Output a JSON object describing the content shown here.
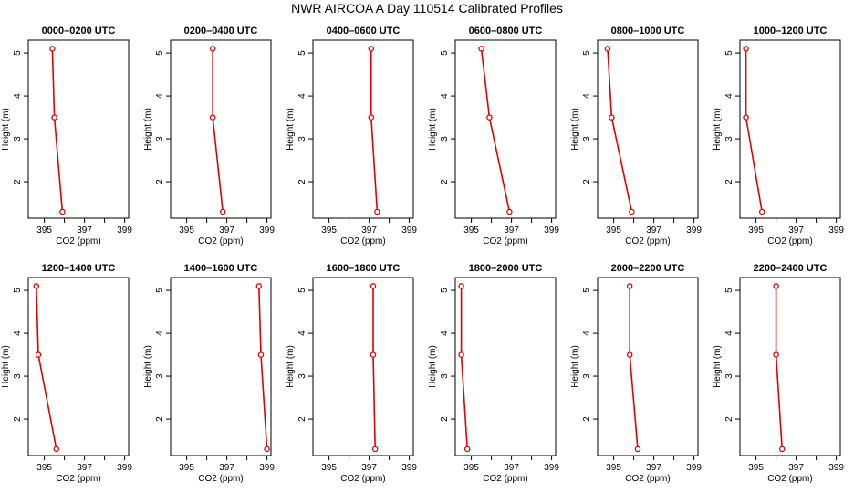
{
  "title": "NWR AIRCOA A  Day 110514  Calibrated Profiles",
  "chart_data": [
    {
      "type": "line",
      "title": "0000–0200 UTC",
      "xlabel": "CO2 (ppm)",
      "ylabel": "Height (m)",
      "xlim": [
        394.2,
        399.2
      ],
      "ylim": [
        1.15,
        5.3
      ],
      "xticks": [
        "395",
        "397",
        "399"
      ],
      "yticks": [
        "2",
        "3",
        "4",
        "5"
      ],
      "series": [
        {
          "x": [
            395.4,
            395.5,
            395.9
          ],
          "y": [
            5.1,
            3.5,
            1.3
          ]
        }
      ]
    },
    {
      "type": "line",
      "title": "0200–0400 UTC",
      "xlabel": "CO2 (ppm)",
      "ylabel": "Height (m)",
      "xlim": [
        394.2,
        399.2
      ],
      "ylim": [
        1.15,
        5.3
      ],
      "xticks": [
        "395",
        "397",
        "399"
      ],
      "yticks": [
        "2",
        "3",
        "4",
        "5"
      ],
      "series": [
        {
          "x": [
            396.3,
            396.3,
            396.8
          ],
          "y": [
            5.1,
            3.5,
            1.3
          ]
        }
      ]
    },
    {
      "type": "line",
      "title": "0400–0600 UTC",
      "xlabel": "CO2 (ppm)",
      "ylabel": "Height (m)",
      "xlim": [
        394.2,
        399.2
      ],
      "ylim": [
        1.15,
        5.3
      ],
      "xticks": [
        "395",
        "397",
        "399"
      ],
      "yticks": [
        "2",
        "3",
        "4",
        "5"
      ],
      "series": [
        {
          "x": [
            397.1,
            397.1,
            397.4
          ],
          "y": [
            5.1,
            3.5,
            1.3
          ]
        }
      ]
    },
    {
      "type": "line",
      "title": "0600–0800 UTC",
      "xlabel": "CO2 (ppm)",
      "ylabel": "Height (m)",
      "xlim": [
        394.2,
        399.2
      ],
      "ylim": [
        1.15,
        5.3
      ],
      "xticks": [
        "395",
        "397",
        "399"
      ],
      "yticks": [
        "2",
        "3",
        "4",
        "5"
      ],
      "series": [
        {
          "x": [
            395.5,
            395.9,
            396.9
          ],
          "y": [
            5.1,
            3.5,
            1.3
          ]
        }
      ]
    },
    {
      "type": "line",
      "title": "0800–1000 UTC",
      "xlabel": "CO2 (ppm)",
      "ylabel": "Height (m)",
      "xlim": [
        394.2,
        399.2
      ],
      "ylim": [
        1.15,
        5.3
      ],
      "xticks": [
        "395",
        "397",
        "399"
      ],
      "yticks": [
        "2",
        "3",
        "4",
        "5"
      ],
      "series": [
        {
          "x": [
            394.7,
            394.9,
            395.9
          ],
          "y": [
            5.1,
            3.5,
            1.3
          ]
        }
      ]
    },
    {
      "type": "line",
      "title": "1000–1200 UTC",
      "xlabel": "CO2 (ppm)",
      "ylabel": "Height (m)",
      "xlim": [
        394.2,
        399.2
      ],
      "ylim": [
        1.15,
        5.3
      ],
      "xticks": [
        "395",
        "397",
        "399"
      ],
      "yticks": [
        "2",
        "3",
        "4",
        "5"
      ],
      "series": [
        {
          "x": [
            394.5,
            394.5,
            395.3
          ],
          "y": [
            5.1,
            3.5,
            1.3
          ]
        }
      ]
    },
    {
      "type": "line",
      "title": "1200–1400 UTC",
      "xlabel": "CO2 (ppm)",
      "ylabel": "Height (m)",
      "xlim": [
        394.2,
        399.2
      ],
      "ylim": [
        1.15,
        5.3
      ],
      "xticks": [
        "395",
        "397",
        "399"
      ],
      "yticks": [
        "2",
        "3",
        "4",
        "5"
      ],
      "series": [
        {
          "x": [
            394.6,
            394.7,
            395.6
          ],
          "y": [
            5.1,
            3.5,
            1.3
          ]
        }
      ]
    },
    {
      "type": "line",
      "title": "1400–1600 UTC",
      "xlabel": "CO2 (ppm)",
      "ylabel": "Height (m)",
      "xlim": [
        394.2,
        399.2
      ],
      "ylim": [
        1.15,
        5.3
      ],
      "xticks": [
        "395",
        "397",
        "399"
      ],
      "yticks": [
        "2",
        "3",
        "4",
        "5"
      ],
      "series": [
        {
          "x": [
            398.6,
            398.7,
            399.0
          ],
          "y": [
            5.1,
            3.5,
            1.3
          ]
        }
      ]
    },
    {
      "type": "line",
      "title": "1600–1800 UTC",
      "xlabel": "CO2 (ppm)",
      "ylabel": "Height (m)",
      "xlim": [
        394.2,
        399.2
      ],
      "ylim": [
        1.15,
        5.3
      ],
      "xticks": [
        "395",
        "397",
        "399"
      ],
      "yticks": [
        "2",
        "3",
        "4",
        "5"
      ],
      "series": [
        {
          "x": [
            397.2,
            397.2,
            397.3
          ],
          "y": [
            5.1,
            3.5,
            1.3
          ]
        }
      ]
    },
    {
      "type": "line",
      "title": "1800–2000 UTC",
      "xlabel": "CO2 (ppm)",
      "ylabel": "Height (m)",
      "xlim": [
        394.2,
        399.2
      ],
      "ylim": [
        1.15,
        5.3
      ],
      "xticks": [
        "395",
        "397",
        "399"
      ],
      "yticks": [
        "2",
        "3",
        "4",
        "5"
      ],
      "series": [
        {
          "x": [
            394.5,
            394.5,
            394.8
          ],
          "y": [
            5.1,
            3.5,
            1.3
          ]
        }
      ]
    },
    {
      "type": "line",
      "title": "2000–2200 UTC",
      "xlabel": "CO2 (ppm)",
      "ylabel": "Height (m)",
      "xlim": [
        394.2,
        399.2
      ],
      "ylim": [
        1.15,
        5.3
      ],
      "xticks": [
        "395",
        "397",
        "399"
      ],
      "yticks": [
        "2",
        "3",
        "4",
        "5"
      ],
      "series": [
        {
          "x": [
            395.8,
            395.8,
            396.2
          ],
          "y": [
            5.1,
            3.5,
            1.3
          ]
        }
      ]
    },
    {
      "type": "line",
      "title": "2200–2400 UTC",
      "xlabel": "CO2 (ppm)",
      "ylabel": "Height (m)",
      "xlim": [
        394.2,
        399.2
      ],
      "ylim": [
        1.15,
        5.3
      ],
      "xticks": [
        "395",
        "397",
        "399"
      ],
      "yticks": [
        "2",
        "3",
        "4",
        "5"
      ],
      "series": [
        {
          "x": [
            396.0,
            396.0,
            396.3
          ],
          "y": [
            5.1,
            3.5,
            1.3
          ]
        }
      ]
    }
  ],
  "colors": {
    "series_line": "#e00000",
    "axis": "#000000",
    "background": "#ffffff"
  }
}
